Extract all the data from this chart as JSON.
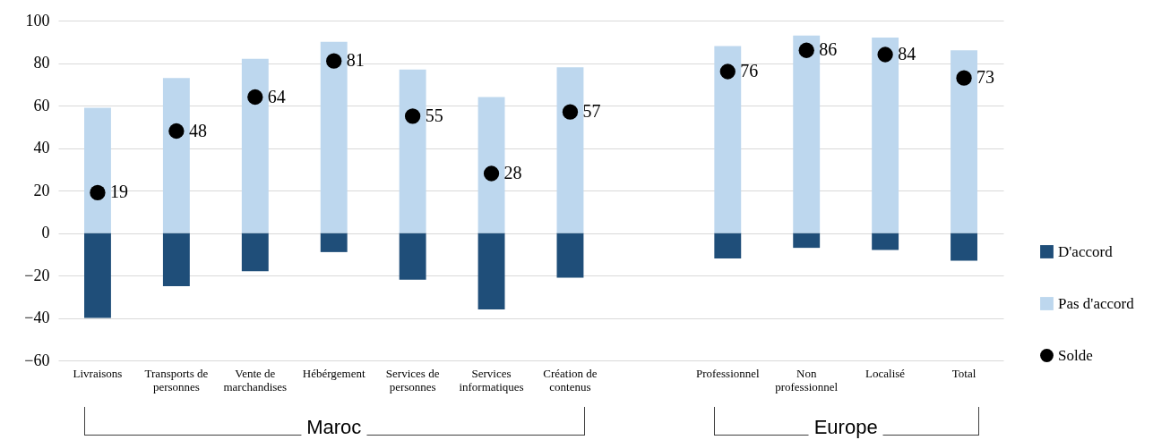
{
  "chart_data": {
    "type": "bar",
    "stacked": true,
    "categories": [
      "Livraisons",
      "Transports de personnes",
      "Vente de marchandises",
      "Hébérgement",
      "Services de personnes",
      "Services informatiques",
      "Création de contenus",
      null,
      "Professionnel",
      "Non professionnel",
      "Localisé",
      "Total"
    ],
    "series": [
      {
        "name": "D'accord",
        "color": "#1f4e79",
        "values": [
          -40,
          -25,
          -18,
          -9,
          -22,
          -36,
          -21,
          null,
          -12,
          -7,
          -8,
          -13
        ]
      },
      {
        "name": "Pas d'accord",
        "color": "#bdd7ee",
        "values": [
          59,
          73,
          82,
          90,
          77,
          64,
          78,
          null,
          88,
          93,
          92,
          86
        ]
      },
      {
        "name": "Solde",
        "type": "scatter",
        "color": "#000000",
        "values": [
          19,
          48,
          64,
          81,
          55,
          28,
          57,
          null,
          76,
          86,
          84,
          73
        ],
        "value_labels": [
          "19",
          "48",
          "64",
          "81",
          "55",
          "28",
          "57",
          null,
          "76",
          "86",
          "84",
          "73"
        ]
      }
    ],
    "ylim": [
      -60,
      100
    ],
    "yticks": [
      -60,
      -40,
      -20,
      0,
      20,
      40,
      60,
      80,
      100
    ],
    "grid": true,
    "legend": "bottom right",
    "marker": "circle",
    "annotations": [
      "Maroc",
      "Europe"
    ]
  }
}
